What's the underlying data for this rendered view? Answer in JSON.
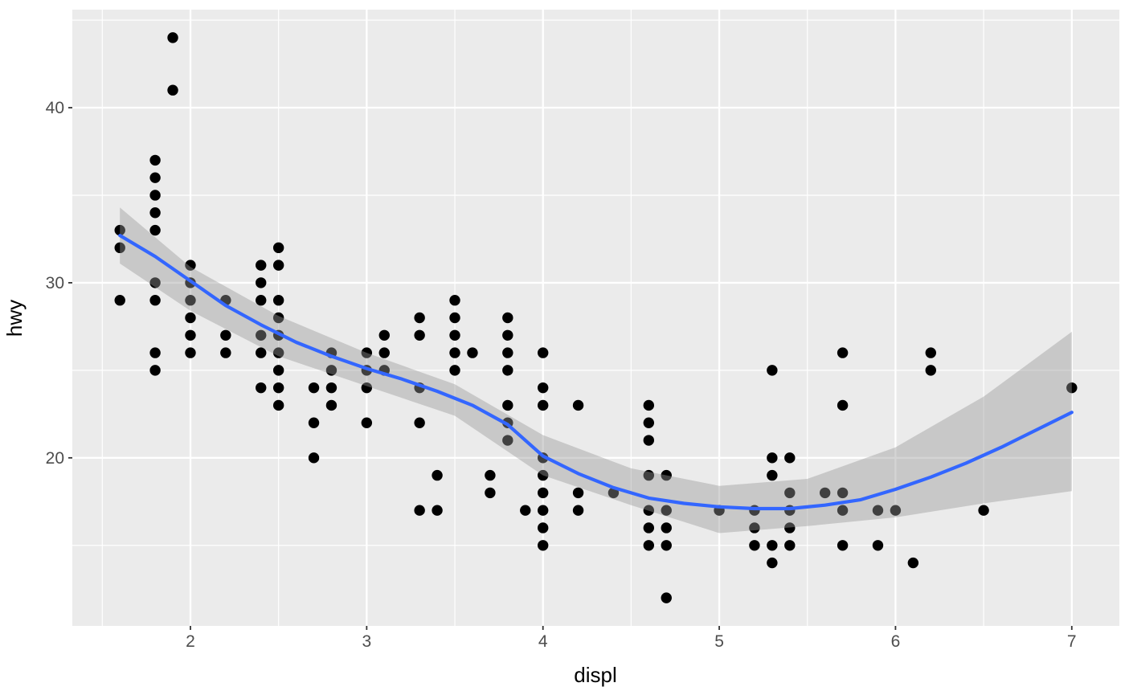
{
  "chart_data": {
    "type": "scatter",
    "title": "",
    "xlabel": "displ",
    "ylabel": "hwy",
    "x_domain": [
      1.33,
      7.27
    ],
    "y_domain": [
      10.4,
      45.6
    ],
    "x_ticks": [
      2,
      3,
      4,
      5,
      6,
      7
    ],
    "x_tick_labels": [
      "2",
      "3",
      "4",
      "5",
      "6",
      "7"
    ],
    "y_ticks": [
      20,
      30,
      40
    ],
    "y_tick_labels": [
      "20",
      "30",
      "40"
    ],
    "x_minor_gridlines": [
      1.5,
      2.5,
      3.5,
      4.5,
      5.5,
      6.5
    ],
    "y_minor_gridlines": [
      15,
      25,
      35,
      45
    ],
    "grid": "on",
    "legend": "none",
    "points": [
      [
        1.6,
        29
      ],
      [
        1.6,
        32
      ],
      [
        1.6,
        33
      ],
      [
        1.8,
        25
      ],
      [
        1.8,
        26
      ],
      [
        1.8,
        29
      ],
      [
        1.8,
        30
      ],
      [
        1.8,
        33
      ],
      [
        1.8,
        34
      ],
      [
        1.8,
        35
      ],
      [
        1.8,
        36
      ],
      [
        1.8,
        37
      ],
      [
        1.9,
        41
      ],
      [
        1.9,
        44
      ],
      [
        2.0,
        26
      ],
      [
        2.0,
        27
      ],
      [
        2.0,
        28
      ],
      [
        2.0,
        29
      ],
      [
        2.0,
        30
      ],
      [
        2.0,
        31
      ],
      [
        2.2,
        26
      ],
      [
        2.2,
        27
      ],
      [
        2.2,
        29
      ],
      [
        2.4,
        24
      ],
      [
        2.4,
        26
      ],
      [
        2.4,
        27
      ],
      [
        2.4,
        29
      ],
      [
        2.4,
        30
      ],
      [
        2.4,
        31
      ],
      [
        2.5,
        23
      ],
      [
        2.5,
        24
      ],
      [
        2.5,
        25
      ],
      [
        2.5,
        26
      ],
      [
        2.5,
        27
      ],
      [
        2.5,
        28
      ],
      [
        2.5,
        29
      ],
      [
        2.5,
        31
      ],
      [
        2.5,
        32
      ],
      [
        2.7,
        20
      ],
      [
        2.7,
        22
      ],
      [
        2.7,
        24
      ],
      [
        2.8,
        23
      ],
      [
        2.8,
        24
      ],
      [
        2.8,
        25
      ],
      [
        2.8,
        26
      ],
      [
        3.0,
        22
      ],
      [
        3.0,
        24
      ],
      [
        3.0,
        25
      ],
      [
        3.0,
        26
      ],
      [
        3.1,
        25
      ],
      [
        3.1,
        26
      ],
      [
        3.1,
        27
      ],
      [
        3.3,
        17
      ],
      [
        3.3,
        22
      ],
      [
        3.3,
        24
      ],
      [
        3.3,
        27
      ],
      [
        3.3,
        28
      ],
      [
        3.4,
        17
      ],
      [
        3.4,
        19
      ],
      [
        3.5,
        25
      ],
      [
        3.5,
        26
      ],
      [
        3.5,
        27
      ],
      [
        3.5,
        28
      ],
      [
        3.5,
        29
      ],
      [
        3.6,
        26
      ],
      [
        3.7,
        18
      ],
      [
        3.7,
        19
      ],
      [
        3.8,
        21
      ],
      [
        3.8,
        22
      ],
      [
        3.8,
        23
      ],
      [
        3.8,
        25
      ],
      [
        3.8,
        26
      ],
      [
        3.8,
        27
      ],
      [
        3.8,
        28
      ],
      [
        3.9,
        17
      ],
      [
        4.0,
        15
      ],
      [
        4.0,
        16
      ],
      [
        4.0,
        17
      ],
      [
        4.0,
        18
      ],
      [
        4.0,
        19
      ],
      [
        4.0,
        20
      ],
      [
        4.0,
        23
      ],
      [
        4.0,
        24
      ],
      [
        4.0,
        26
      ],
      [
        4.2,
        17
      ],
      [
        4.2,
        18
      ],
      [
        4.2,
        23
      ],
      [
        4.4,
        18
      ],
      [
        4.6,
        15
      ],
      [
        4.6,
        16
      ],
      [
        4.6,
        17
      ],
      [
        4.6,
        19
      ],
      [
        4.6,
        21
      ],
      [
        4.6,
        22
      ],
      [
        4.6,
        23
      ],
      [
        4.7,
        12
      ],
      [
        4.7,
        15
      ],
      [
        4.7,
        16
      ],
      [
        4.7,
        17
      ],
      [
        4.7,
        19
      ],
      [
        5.0,
        17
      ],
      [
        5.2,
        15
      ],
      [
        5.2,
        16
      ],
      [
        5.2,
        17
      ],
      [
        5.3,
        14
      ],
      [
        5.3,
        15
      ],
      [
        5.3,
        19
      ],
      [
        5.3,
        20
      ],
      [
        5.3,
        25
      ],
      [
        5.4,
        15
      ],
      [
        5.4,
        16
      ],
      [
        5.4,
        17
      ],
      [
        5.4,
        18
      ],
      [
        5.4,
        20
      ],
      [
        5.6,
        18
      ],
      [
        5.7,
        15
      ],
      [
        5.7,
        17
      ],
      [
        5.7,
        18
      ],
      [
        5.7,
        23
      ],
      [
        5.7,
        26
      ],
      [
        5.9,
        15
      ],
      [
        5.9,
        17
      ],
      [
        6.0,
        17
      ],
      [
        6.1,
        14
      ],
      [
        6.2,
        25
      ],
      [
        6.2,
        26
      ],
      [
        6.5,
        17
      ],
      [
        7.0,
        24
      ]
    ],
    "smooth_line": {
      "x": [
        1.6,
        1.8,
        2.0,
        2.2,
        2.4,
        2.6,
        2.8,
        3.0,
        3.2,
        3.4,
        3.6,
        3.8,
        4.0,
        4.2,
        4.4,
        4.6,
        4.8,
        5.0,
        5.2,
        5.4,
        5.6,
        5.8,
        6.0,
        6.2,
        6.4,
        6.6,
        6.8,
        7.0
      ],
      "y": [
        32.7,
        31.5,
        30.1,
        28.7,
        27.6,
        26.6,
        25.8,
        25.1,
        24.5,
        23.8,
        23.0,
        21.9,
        20.1,
        19.1,
        18.3,
        17.7,
        17.4,
        17.2,
        17.1,
        17.1,
        17.3,
        17.6,
        18.2,
        18.9,
        19.7,
        20.6,
        21.6,
        22.6
      ]
    },
    "ribbon": {
      "x": [
        1.6,
        2.0,
        2.5,
        3.0,
        3.5,
        4.0,
        4.5,
        5.0,
        5.5,
        6.0,
        6.5,
        7.0
      ],
      "upper": [
        34.3,
        30.9,
        28.1,
        26.0,
        24.2,
        21.3,
        19.4,
        18.4,
        18.8,
        20.6,
        23.5,
        27.2
      ],
      "lower": [
        31.1,
        28.4,
        25.8,
        24.1,
        22.4,
        19.0,
        17.3,
        15.7,
        16.1,
        16.6,
        17.4,
        18.1
      ]
    },
    "style": {
      "panel_background": "#EBEBEB",
      "outer_background": "#FFFFFF",
      "gridline_color": "#FFFFFF",
      "point_color": "#000000",
      "smooth_line_color": "#3366FF",
      "ribbon_color": "#999999",
      "ribbon_opacity": 0.42,
      "tick_mark_color": "#333333",
      "tick_label_color": "#4D4D4D",
      "axis_title_color": "#000000"
    }
  }
}
